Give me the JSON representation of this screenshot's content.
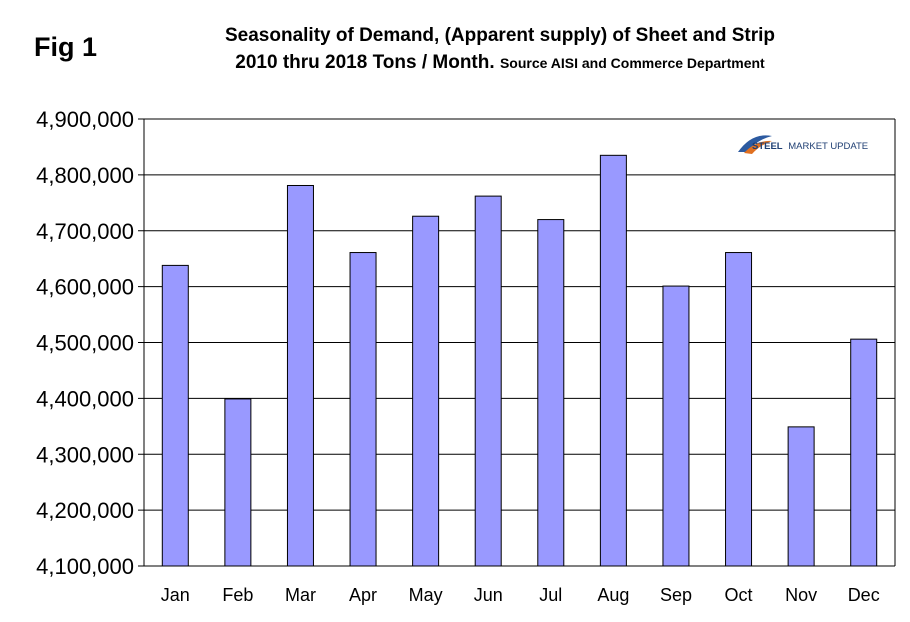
{
  "figure_label": "Fig 1",
  "title_line1": "Seasonality of Demand, (Apparent supply) of Sheet and Strip",
  "title_line2_main": "2010 thru 2018 Tons / Month.",
  "title_line2_source": "Source AISI and Commerce Department",
  "logo": {
    "strong": "STEEL",
    "light": "MARKET UPDATE"
  },
  "colors": {
    "bar_fill": "#9999ff",
    "bar_stroke": "#000000",
    "grid": "#000000"
  },
  "chart_data": {
    "type": "bar",
    "title": "Seasonality of Demand, (Apparent supply) of Sheet and Strip 2010 thru 2018 Tons / Month.",
    "xlabel": "",
    "ylabel": "",
    "categories": [
      "Jan",
      "Feb",
      "Mar",
      "Apr",
      "May",
      "Jun",
      "Jul",
      "Aug",
      "Sep",
      "Oct",
      "Nov",
      "Dec"
    ],
    "values": [
      4638000,
      4399000,
      4781000,
      4661000,
      4726000,
      4762000,
      4720000,
      4835000,
      4601000,
      4661000,
      4349000,
      4506000
    ],
    "ylim": [
      4100000,
      4900000
    ],
    "yticks": [
      4100000,
      4200000,
      4300000,
      4400000,
      4500000,
      4600000,
      4700000,
      4800000,
      4900000
    ],
    "ytick_labels": [
      "4,100,000",
      "4,200,000",
      "4,300,000",
      "4,400,000",
      "4,500,000",
      "4,600,000",
      "4,700,000",
      "4,800,000",
      "4,900,000"
    ],
    "grid": true,
    "legend": "none"
  }
}
